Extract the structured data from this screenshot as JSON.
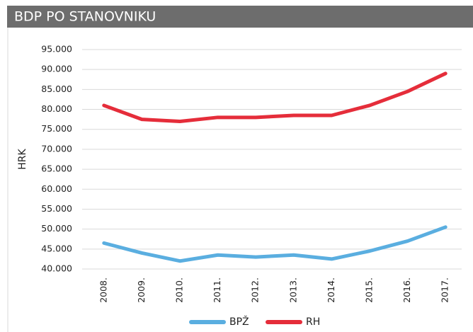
{
  "chart_data": {
    "type": "line",
    "title": "BDP PO STANOVNIKU",
    "y_label": "HRK",
    "categories": [
      "2008.",
      "2009.",
      "2010.",
      "2011.",
      "2012.",
      "2013.",
      "2014.",
      "2015.",
      "2016.",
      "2017."
    ],
    "series": [
      {
        "name": "BPŽ",
        "color": "#5aaee0",
        "values": [
          46500,
          44000,
          42000,
          43500,
          43000,
          43500,
          42500,
          44500,
          47000,
          50500
        ]
      },
      {
        "name": "RH",
        "color": "#e52d3a",
        "values": [
          81000,
          77500,
          77000,
          78000,
          78000,
          78500,
          78500,
          81000,
          84500,
          89000
        ]
      }
    ],
    "ylim": [
      40000,
      95000
    ],
    "yticks": [
      {
        "value": 40000,
        "label": "40.000"
      },
      {
        "value": 45000,
        "label": "45.000"
      },
      {
        "value": 50000,
        "label": "50.000"
      },
      {
        "value": 55000,
        "label": "55.000"
      },
      {
        "value": 60000,
        "label": "60.000"
      },
      {
        "value": 65000,
        "label": "65.000"
      },
      {
        "value": 70000,
        "label": "70.000"
      },
      {
        "value": 75000,
        "label": "75.000"
      },
      {
        "value": 80000,
        "label": "80.000"
      },
      {
        "value": 85000,
        "label": "85.000"
      },
      {
        "value": 90000,
        "label": "90.000"
      },
      {
        "value": 95000,
        "label": "95.000"
      }
    ],
    "grid": true,
    "legend": "bottom"
  }
}
